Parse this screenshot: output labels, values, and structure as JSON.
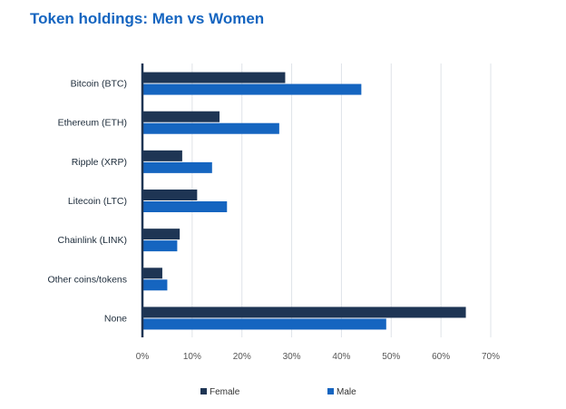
{
  "title": "Token holdings: Men vs Women",
  "colors": {
    "female": "#1E3554",
    "male": "#1565C0",
    "title": "#1565C0",
    "grid": "#dfe3e8",
    "axis": "#1E3554"
  },
  "chart_data": {
    "type": "bar",
    "orientation": "horizontal",
    "title": "Token holdings: Men vs Women",
    "categories": [
      "Bitcoin (BTC)",
      "Ethereum (ETH)",
      "Ripple (XRP)",
      "Litecoin (LTC)",
      "Chainlink (LINK)",
      "Other coins/tokens",
      "None"
    ],
    "series": [
      {
        "name": "Female",
        "color": "#1E3554",
        "values": [
          28.7,
          15.5,
          8.0,
          11.0,
          7.5,
          4.0,
          65.0
        ]
      },
      {
        "name": "Male",
        "color": "#1565C0",
        "values": [
          44.0,
          27.5,
          14.0,
          17.0,
          7.0,
          5.0,
          49.0
        ]
      }
    ],
    "xlim": [
      0,
      70
    ],
    "xticks": [
      "0%",
      "10%",
      "20%",
      "30%",
      "40%",
      "50%",
      "60%",
      "70%"
    ],
    "grid": true,
    "legend": "bottom"
  }
}
